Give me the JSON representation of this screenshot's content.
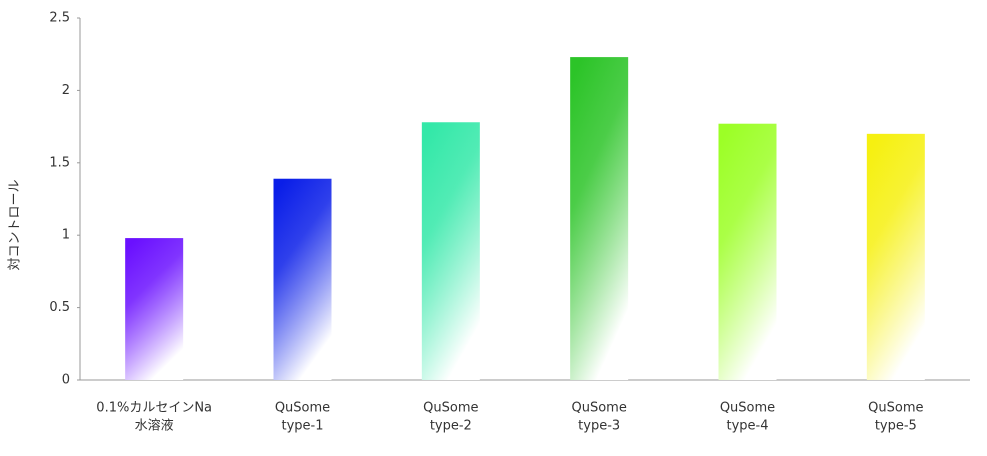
{
  "chart_data": {
    "type": "bar",
    "y_label": "対コントロール",
    "categories": [
      [
        "0.1%カルセインNa",
        "水溶液"
      ],
      [
        "QuSome",
        "type-1"
      ],
      [
        "QuSome",
        "type-2"
      ],
      [
        "QuSome",
        "type-3"
      ],
      [
        "QuSome",
        "type-4"
      ],
      [
        "QuSome",
        "type-5"
      ]
    ],
    "values": [
      0.98,
      1.39,
      1.78,
      2.23,
      1.77,
      1.7
    ],
    "colors": [
      "#6a10ff",
      "#0a1ee8",
      "#33e8a8",
      "#2cc428",
      "#9cff26",
      "#f6f010"
    ],
    "ylim": [
      0,
      2.5
    ],
    "yticks": [
      0,
      0.5,
      1,
      1.5,
      2,
      2.5
    ],
    "grid": false
  }
}
